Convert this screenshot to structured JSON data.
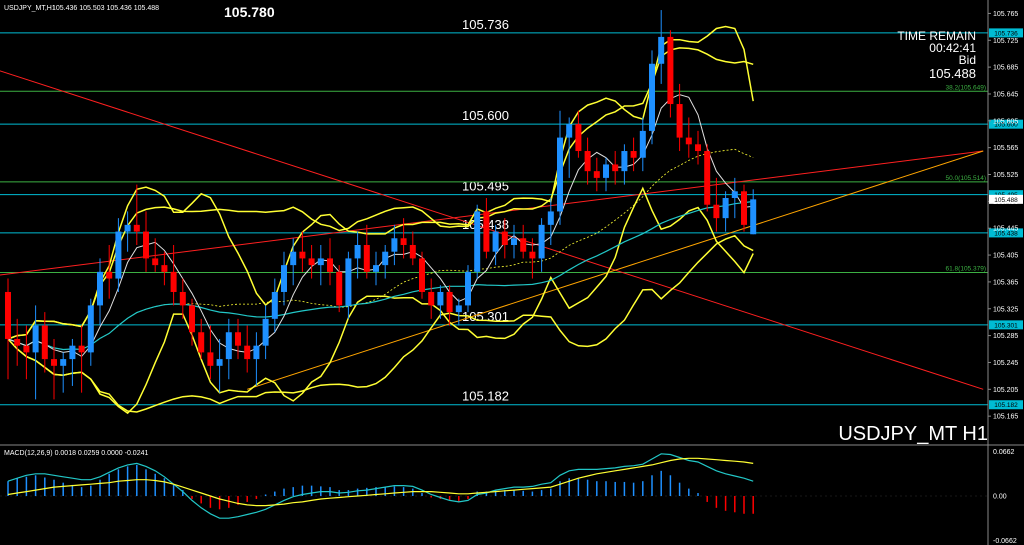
{
  "chart_data": {
    "type": "candlestick",
    "symbol_header": "USDJPY_MT,H1",
    "ohlc_header": "105.436 105.503 105.436 105.488",
    "top_price": "105.780",
    "watermark": "USDJPY_MT H1",
    "countdown": {
      "label": "TIME REMAIN",
      "time": "00:42:41",
      "price_label": "Bid",
      "price": "105.488"
    },
    "ylim": [
      105.125,
      105.785
    ],
    "y_ticks": [
      "105.765",
      "105.725",
      "105.685",
      "105.645",
      "105.605",
      "105.565",
      "105.525",
      "105.485",
      "105.445",
      "105.405",
      "105.365",
      "105.325",
      "105.285",
      "105.245",
      "105.205",
      "105.165"
    ],
    "horizontal_levels": [
      {
        "price": 105.736,
        "label": "105.736",
        "tag": "105.736"
      },
      {
        "price": 105.6,
        "label": "105.600",
        "tag": "105.600"
      },
      {
        "price": 105.495,
        "label": "105.495",
        "tag": "105.495"
      },
      {
        "price": 105.438,
        "label": "105.438",
        "tag": "105.438"
      },
      {
        "price": 105.301,
        "label": "105.301",
        "tag": "105.301"
      },
      {
        "price": 105.182,
        "label": "105.182",
        "tag": "105.182"
      }
    ],
    "fib_levels": [
      {
        "price": 105.649,
        "label": "38.2(105.649)"
      },
      {
        "price": 105.514,
        "label": "50.0(105.514)"
      },
      {
        "price": 105.379,
        "label": "61.8(105.379)"
      }
    ],
    "current_price_tag": "105.488",
    "candles": [
      {
        "o": 105.35,
        "h": 105.37,
        "l": 105.22,
        "c": 105.28
      },
      {
        "o": 105.28,
        "h": 105.31,
        "l": 105.24,
        "c": 105.27
      },
      {
        "o": 105.27,
        "h": 105.3,
        "l": 105.22,
        "c": 105.26
      },
      {
        "o": 105.26,
        "h": 105.33,
        "l": 105.19,
        "c": 105.3
      },
      {
        "o": 105.3,
        "h": 105.32,
        "l": 105.23,
        "c": 105.25
      },
      {
        "o": 105.25,
        "h": 105.28,
        "l": 105.19,
        "c": 105.24
      },
      {
        "o": 105.24,
        "h": 105.26,
        "l": 105.2,
        "c": 105.25
      },
      {
        "o": 105.25,
        "h": 105.28,
        "l": 105.21,
        "c": 105.27
      },
      {
        "o": 105.27,
        "h": 105.3,
        "l": 105.2,
        "c": 105.26
      },
      {
        "o": 105.26,
        "h": 105.34,
        "l": 105.24,
        "c": 105.33
      },
      {
        "o": 105.33,
        "h": 105.4,
        "l": 105.3,
        "c": 105.38
      },
      {
        "o": 105.38,
        "h": 105.42,
        "l": 105.34,
        "c": 105.37
      },
      {
        "o": 105.37,
        "h": 105.46,
        "l": 105.35,
        "c": 105.44
      },
      {
        "o": 105.44,
        "h": 105.47,
        "l": 105.41,
        "c": 105.45
      },
      {
        "o": 105.45,
        "h": 105.51,
        "l": 105.42,
        "c": 105.44
      },
      {
        "o": 105.44,
        "h": 105.47,
        "l": 105.38,
        "c": 105.4
      },
      {
        "o": 105.4,
        "h": 105.43,
        "l": 105.38,
        "c": 105.39
      },
      {
        "o": 105.39,
        "h": 105.41,
        "l": 105.36,
        "c": 105.38
      },
      {
        "o": 105.38,
        "h": 105.42,
        "l": 105.33,
        "c": 105.35
      },
      {
        "o": 105.35,
        "h": 105.37,
        "l": 105.31,
        "c": 105.33
      },
      {
        "o": 105.33,
        "h": 105.34,
        "l": 105.27,
        "c": 105.29
      },
      {
        "o": 105.29,
        "h": 105.31,
        "l": 105.25,
        "c": 105.26
      },
      {
        "o": 105.26,
        "h": 105.3,
        "l": 105.22,
        "c": 105.24
      },
      {
        "o": 105.24,
        "h": 105.28,
        "l": 105.2,
        "c": 105.25
      },
      {
        "o": 105.25,
        "h": 105.31,
        "l": 105.22,
        "c": 105.29
      },
      {
        "o": 105.29,
        "h": 105.31,
        "l": 105.25,
        "c": 105.27
      },
      {
        "o": 105.27,
        "h": 105.3,
        "l": 105.23,
        "c": 105.25
      },
      {
        "o": 105.25,
        "h": 105.29,
        "l": 105.21,
        "c": 105.27
      },
      {
        "o": 105.27,
        "h": 105.33,
        "l": 105.25,
        "c": 105.31
      },
      {
        "o": 105.31,
        "h": 105.37,
        "l": 105.29,
        "c": 105.35
      },
      {
        "o": 105.35,
        "h": 105.41,
        "l": 105.33,
        "c": 105.39
      },
      {
        "o": 105.39,
        "h": 105.43,
        "l": 105.36,
        "c": 105.41
      },
      {
        "o": 105.41,
        "h": 105.44,
        "l": 105.38,
        "c": 105.4
      },
      {
        "o": 105.4,
        "h": 105.42,
        "l": 105.37,
        "c": 105.39
      },
      {
        "o": 105.39,
        "h": 105.42,
        "l": 105.36,
        "c": 105.4
      },
      {
        "o": 105.4,
        "h": 105.43,
        "l": 105.36,
        "c": 105.38
      },
      {
        "o": 105.38,
        "h": 105.39,
        "l": 105.32,
        "c": 105.33
      },
      {
        "o": 105.33,
        "h": 105.41,
        "l": 105.31,
        "c": 105.4
      },
      {
        "o": 105.4,
        "h": 105.44,
        "l": 105.37,
        "c": 105.42
      },
      {
        "o": 105.42,
        "h": 105.45,
        "l": 105.37,
        "c": 105.38
      },
      {
        "o": 105.38,
        "h": 105.41,
        "l": 105.36,
        "c": 105.39
      },
      {
        "o": 105.39,
        "h": 105.42,
        "l": 105.37,
        "c": 105.41
      },
      {
        "o": 105.41,
        "h": 105.45,
        "l": 105.39,
        "c": 105.43
      },
      {
        "o": 105.43,
        "h": 105.46,
        "l": 105.4,
        "c": 105.42
      },
      {
        "o": 105.42,
        "h": 105.44,
        "l": 105.39,
        "c": 105.4
      },
      {
        "o": 105.4,
        "h": 105.41,
        "l": 105.34,
        "c": 105.35
      },
      {
        "o": 105.35,
        "h": 105.37,
        "l": 105.31,
        "c": 105.33
      },
      {
        "o": 105.33,
        "h": 105.36,
        "l": 105.31,
        "c": 105.35
      },
      {
        "o": 105.35,
        "h": 105.36,
        "l": 105.3,
        "c": 105.32
      },
      {
        "o": 105.32,
        "h": 105.34,
        "l": 105.3,
        "c": 105.33
      },
      {
        "o": 105.33,
        "h": 105.39,
        "l": 105.32,
        "c": 105.38
      },
      {
        "o": 105.38,
        "h": 105.48,
        "l": 105.37,
        "c": 105.47
      },
      {
        "o": 105.47,
        "h": 105.49,
        "l": 105.4,
        "c": 105.41
      },
      {
        "o": 105.41,
        "h": 105.45,
        "l": 105.39,
        "c": 105.44
      },
      {
        "o": 105.44,
        "h": 105.46,
        "l": 105.4,
        "c": 105.42
      },
      {
        "o": 105.42,
        "h": 105.45,
        "l": 105.4,
        "c": 105.43
      },
      {
        "o": 105.43,
        "h": 105.45,
        "l": 105.4,
        "c": 105.41
      },
      {
        "o": 105.41,
        "h": 105.43,
        "l": 105.37,
        "c": 105.4
      },
      {
        "o": 105.4,
        "h": 105.46,
        "l": 105.38,
        "c": 105.45
      },
      {
        "o": 105.45,
        "h": 105.49,
        "l": 105.42,
        "c": 105.47
      },
      {
        "o": 105.47,
        "h": 105.62,
        "l": 105.45,
        "c": 105.58
      },
      {
        "o": 105.58,
        "h": 105.61,
        "l": 105.52,
        "c": 105.6
      },
      {
        "o": 105.6,
        "h": 105.62,
        "l": 105.55,
        "c": 105.56
      },
      {
        "o": 105.56,
        "h": 105.58,
        "l": 105.51,
        "c": 105.53
      },
      {
        "o": 105.53,
        "h": 105.55,
        "l": 105.5,
        "c": 105.52
      },
      {
        "o": 105.52,
        "h": 105.55,
        "l": 105.5,
        "c": 105.54
      },
      {
        "o": 105.54,
        "h": 105.56,
        "l": 105.51,
        "c": 105.53
      },
      {
        "o": 105.53,
        "h": 105.57,
        "l": 105.51,
        "c": 105.56
      },
      {
        "o": 105.56,
        "h": 105.58,
        "l": 105.53,
        "c": 105.55
      },
      {
        "o": 105.55,
        "h": 105.61,
        "l": 105.53,
        "c": 105.59
      },
      {
        "o": 105.59,
        "h": 105.71,
        "l": 105.57,
        "c": 105.69
      },
      {
        "o": 105.69,
        "h": 105.77,
        "l": 105.66,
        "c": 105.73
      },
      {
        "o": 105.73,
        "h": 105.74,
        "l": 105.61,
        "c": 105.63
      },
      {
        "o": 105.63,
        "h": 105.66,
        "l": 105.56,
        "c": 105.58
      },
      {
        "o": 105.58,
        "h": 105.61,
        "l": 105.55,
        "c": 105.57
      },
      {
        "o": 105.57,
        "h": 105.59,
        "l": 105.54,
        "c": 105.56
      },
      {
        "o": 105.56,
        "h": 105.57,
        "l": 105.47,
        "c": 105.48
      },
      {
        "o": 105.48,
        "h": 105.52,
        "l": 105.44,
        "c": 105.46
      },
      {
        "o": 105.46,
        "h": 105.5,
        "l": 105.44,
        "c": 105.49
      },
      {
        "o": 105.49,
        "h": 105.52,
        "l": 105.46,
        "c": 105.5
      },
      {
        "o": 105.5,
        "h": 105.51,
        "l": 105.44,
        "c": 105.45
      },
      {
        "o": 105.436,
        "h": 105.503,
        "l": 105.436,
        "c": 105.488
      }
    ],
    "macd": {
      "label": "MACD(12,26,9) 0.0018 0.0259 0.0000 -0.0241",
      "ylim": [
        -0.0662,
        0.0662
      ],
      "y_ticks": [
        "0.0662",
        "0.00",
        "-0.0662"
      ],
      "hist": [
        0.02,
        0.024,
        0.026,
        0.028,
        0.025,
        0.022,
        0.018,
        0.015,
        0.012,
        0.014,
        0.022,
        0.03,
        0.036,
        0.04,
        0.042,
        0.036,
        0.03,
        0.024,
        0.016,
        0.008,
        -0.004,
        -0.01,
        -0.016,
        -0.018,
        -0.016,
        -0.012,
        -0.008,
        -0.004,
        0.002,
        0.006,
        0.01,
        0.012,
        0.014,
        0.014,
        0.013,
        0.012,
        0.008,
        0.008,
        0.01,
        0.011,
        0.012,
        0.012,
        0.013,
        0.012,
        0.01,
        0.004,
        -0.002,
        -0.004,
        -0.006,
        -0.008,
        -0.004,
        0.006,
        0.006,
        0.008,
        0.008,
        0.008,
        0.007,
        0.006,
        0.008,
        0.01,
        0.02,
        0.024,
        0.024,
        0.022,
        0.02,
        0.02,
        0.019,
        0.019,
        0.018,
        0.02,
        0.028,
        0.034,
        0.028,
        0.018,
        0.01,
        0.004,
        -0.008,
        -0.016,
        -0.02,
        -0.022,
        -0.024,
        -0.024
      ],
      "macd": [
        0.02,
        0.024,
        0.028,
        0.03,
        0.03,
        0.028,
        0.026,
        0.024,
        0.022,
        0.022,
        0.026,
        0.032,
        0.038,
        0.042,
        0.044,
        0.04,
        0.034,
        0.026,
        0.016,
        0.006,
        -0.006,
        -0.016,
        -0.024,
        -0.03,
        -0.03,
        -0.028,
        -0.025,
        -0.022,
        -0.018,
        -0.012,
        -0.006,
        -0.001,
        0.002,
        0.004,
        0.006,
        0.006,
        0.004,
        0.005,
        0.007,
        0.008,
        0.01,
        0.012,
        0.014,
        0.014,
        0.013,
        0.008,
        0.002,
        -0.002,
        -0.006,
        -0.008,
        -0.006,
        0.002,
        0.004,
        0.008,
        0.01,
        0.012,
        0.012,
        0.013,
        0.016,
        0.018,
        0.028,
        0.034,
        0.036,
        0.036,
        0.036,
        0.037,
        0.038,
        0.04,
        0.041,
        0.043,
        0.05,
        0.057,
        0.056,
        0.052,
        0.048,
        0.046,
        0.04,
        0.034,
        0.03,
        0.027,
        0.024,
        0.02
      ],
      "signal": [
        0.002,
        0.004,
        0.006,
        0.008,
        0.01,
        0.012,
        0.013,
        0.014,
        0.015,
        0.016,
        0.017,
        0.018,
        0.02,
        0.021,
        0.022,
        0.022,
        0.021,
        0.019,
        0.016,
        0.012,
        0.008,
        0.004,
        0.0,
        -0.004,
        -0.007,
        -0.01,
        -0.012,
        -0.013,
        -0.013,
        -0.012,
        -0.011,
        -0.009,
        -0.008,
        -0.006,
        -0.004,
        -0.003,
        -0.002,
        -0.001,
        0.0,
        0.001,
        0.002,
        0.003,
        0.004,
        0.005,
        0.006,
        0.006,
        0.006,
        0.005,
        0.004,
        0.003,
        0.003,
        0.004,
        0.005,
        0.006,
        0.007,
        0.008,
        0.009,
        0.01,
        0.011,
        0.012,
        0.016,
        0.02,
        0.024,
        0.027,
        0.03,
        0.032,
        0.034,
        0.036,
        0.038,
        0.04,
        0.042,
        0.045,
        0.048,
        0.05,
        0.051,
        0.051,
        0.05,
        0.049,
        0.048,
        0.047,
        0.046,
        0.044
      ]
    },
    "colors": {
      "background": "#000000",
      "bull": "#1e90ff",
      "bear": "#ff0000",
      "hline": "#00bcd4",
      "fib": "#3cb043",
      "band": "#ffff33",
      "ma_cyan": "#22c7c7",
      "ma_white": "#e0e0e0",
      "trend_red": "#ff2020",
      "trend_orange": "#ffa500",
      "macd_line": "#ffff33",
      "signal_line": "#22c7c7",
      "hist_pos": "#1e90ff",
      "hist_neg": "#ff0000"
    }
  }
}
